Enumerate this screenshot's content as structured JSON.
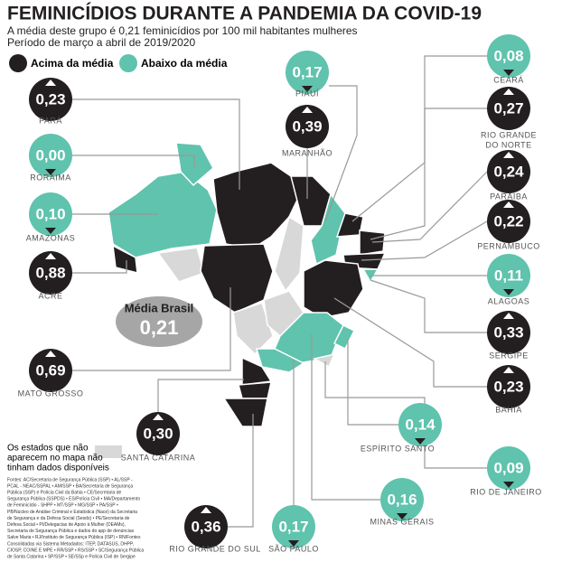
{
  "header": {
    "title": "FEMINICÍDIOS DURANTE A PANDEMIA DA COVID-19",
    "subtitle": [
      "A média deste grupo é 0,21 feminicídios por 100 mil habitantes mulheres",
      "Período de março a abril de 2019/2020"
    ]
  },
  "legend": {
    "above": "Acima da média",
    "below": "Abaixo da média"
  },
  "national": {
    "label": "Média Brasil",
    "value": "0,21"
  },
  "states": [
    {
      "name": "PARÁ",
      "value": "0,23",
      "group": "above"
    },
    {
      "name": "RORAIMA",
      "value": "0,00",
      "group": "below"
    },
    {
      "name": "AMAZONAS",
      "value": "0,10",
      "group": "below"
    },
    {
      "name": "ACRE",
      "value": "0,88",
      "group": "above"
    },
    {
      "name": "MATO GROSSO",
      "value": "0,69",
      "group": "above"
    },
    {
      "name": "SANTA CATARINA",
      "value": "0,30",
      "group": "above"
    },
    {
      "name": "RIO GRANDE DO SUL",
      "value": "0,36",
      "group": "above"
    },
    {
      "name": "SÃO PAULO",
      "value": "0,17",
      "group": "below"
    },
    {
      "name": "MINAS GERAIS",
      "value": "0,16",
      "group": "below"
    },
    {
      "name": "ESPÍRITO SANTO",
      "value": "0,14",
      "group": "below"
    },
    {
      "name": "RIO DE JANEIRO",
      "value": "0,09",
      "group": "below"
    },
    {
      "name": "BAHIA",
      "value": "0,23",
      "group": "above"
    },
    {
      "name": "SERGIPE",
      "value": "0,33",
      "group": "above"
    },
    {
      "name": "ALAGOAS",
      "value": "0,11",
      "group": "below"
    },
    {
      "name": "PERNAMBUCO",
      "value": "0,22",
      "group": "above"
    },
    {
      "name": "PARAÍBA",
      "value": "0,24",
      "group": "above"
    },
    {
      "name": [
        "RIO GRANDE",
        "DO NORTE"
      ],
      "value": "0,27",
      "group": "above"
    },
    {
      "name": "CEARÁ",
      "value": "0,08",
      "group": "below"
    },
    {
      "name": "PIAUÍ",
      "value": "0,17",
      "group": "below"
    },
    {
      "name": "MARANHÃO",
      "value": "0,39",
      "group": "above"
    }
  ],
  "note": [
    "Os estados que não",
    "aparecem no mapa não",
    "tinham dados disponíveis"
  ],
  "sources": [
    "Fontes: AC/Secretaria de Segurança Pública (SSP) • AL/SSP -",
    "PCAL - NEAC/SSPAL • AM/SSP • BA/Secretaria de Segurança",
    "Pública (SSP) e Polícia Civil da Bahia • CE/Secretaria de",
    "Segurança Pública (SSPDS) • ES/Polícia Civil • MA/Departamento",
    "de Feminicídio - SHPP • MT/SSP • MG/SSP • PA/SSP •",
    "PB/Núcleo de Análise Criminal e Estatística (Nace) da Secretaria",
    "de Segurança e da Defesa Social (Sesds) • PE/Secretaria de",
    "Defesa Social • PI/Delegacias de Apoio à Mulher (DEAMs),",
    "Secretaria de Segurança Pública e dados do app de denúncias",
    "Salve Maria • RJ/Instituto de Segurança Pública (ISP) • RN/Fontes",
    "Consolidadas via Sistema Metadados: ITEP, DATASUS, DHPP,",
    "CIOSP, COINE E MPE • RR/SSP • RS/SSP • SC/Segurança Pública",
    "de Santa Catarina • SP/SSP • SE/SSp e Polícia Civil de Sergipe"
  ]
}
